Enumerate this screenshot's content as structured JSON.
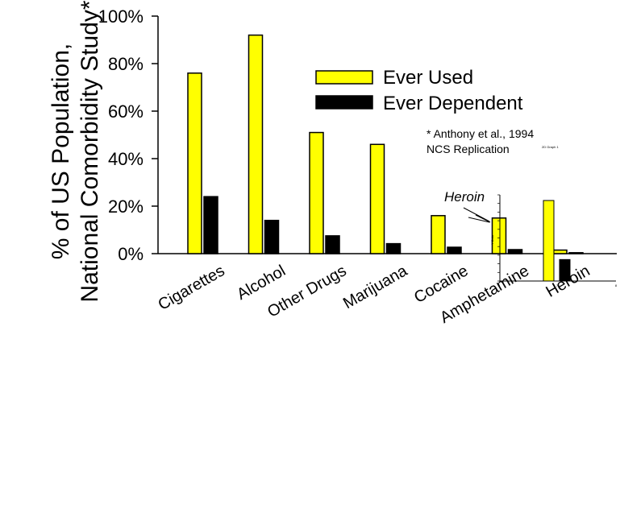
{
  "chart_data": {
    "type": "bar",
    "title": "",
    "ylabel": [
      "% of US Population,",
      "National Comorbidity Study*"
    ],
    "xlabel": "",
    "ylim": [
      0,
      100
    ],
    "yticks": [
      "0%",
      "20%",
      "40%",
      "60%",
      "80%",
      "100%"
    ],
    "categories": [
      "Cigarettes",
      "Alcohol",
      "Other Drugs",
      "Marijuana",
      "Cocaine",
      "Amphetamine",
      "Heroin"
    ],
    "series": [
      {
        "name": "Ever Used",
        "color": "#ffff00",
        "values": [
          76,
          92,
          51,
          46,
          16,
          15,
          1.5
        ]
      },
      {
        "name": "Ever Dependent",
        "color": "#000000",
        "values": [
          24,
          14,
          7.5,
          4.2,
          2.7,
          1.7,
          0.4
        ]
      }
    ],
    "legend_position": "top-right",
    "footnote": [
      "* Anthony et al., 1994",
      "NCS Replication"
    ],
    "footnote_small": "2D Graph 1",
    "inset": {
      "callout_label": "Heroin",
      "axis_label": "Y Data",
      "x_ticks": [
        "6",
        "7",
        "8"
      ],
      "values": {
        "Ever Used": 1.5,
        "Ever Dependent": 0.4
      }
    }
  }
}
